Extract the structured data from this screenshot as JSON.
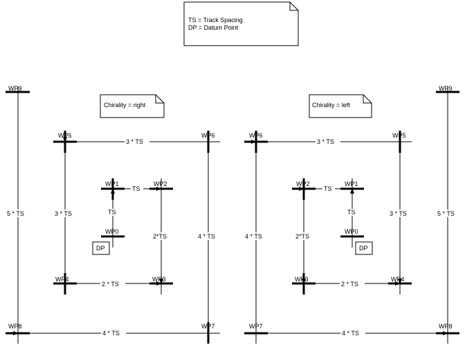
{
  "legend": {
    "line1": "TS = Track Spacing",
    "line2": "DP = Datum Point"
  },
  "left_diagram": {
    "chirality": "Chirality = right",
    "waypoints": {
      "wp0": "WP0",
      "wp1": "WP1",
      "wp2": "WP2",
      "wp3": "WP3",
      "wp4": "WP4",
      "wp5": "WP5",
      "wp6": "WP6",
      "wp7": "WP7",
      "wp8": "WP8",
      "wp9": "WP9"
    },
    "datum": "DP",
    "dims": {
      "wp1_wp2": "TS",
      "wp0_wp1": "TS",
      "wp2_wp3": "2*TS",
      "wp4_wp3": "2 * TS",
      "wp5_wp6": "3 * TS",
      "wp5_wp4": "3 * TS",
      "wp6_wp7": "4 * TS",
      "wp8_wp7": "4 * TS",
      "wp9_wp8": "5 * TS"
    }
  },
  "right_diagram": {
    "chirality": "Chirality = left",
    "waypoints": {
      "wp0": "WP0",
      "wp1": "WP1",
      "wp2": "WP2",
      "wp3": "WP3",
      "wp4": "WP4",
      "wp5": "WP5",
      "wp6": "WP6",
      "wp7": "WP7",
      "wp8": "WP8",
      "wp9": "WP9"
    },
    "datum": "DP",
    "dims": {
      "wp2_wp1": "TS",
      "wp0_wp1": "TS",
      "wp2_wp3": "2*TS",
      "wp3_wp4": "2 * TS",
      "wp6_wp5": "3 * TS",
      "wp5_wp4": "3 * TS",
      "wp6_wp7": "4 * TS",
      "wp7_wp8": "4 * TS",
      "wp9_wp8": "5 * TS"
    }
  }
}
